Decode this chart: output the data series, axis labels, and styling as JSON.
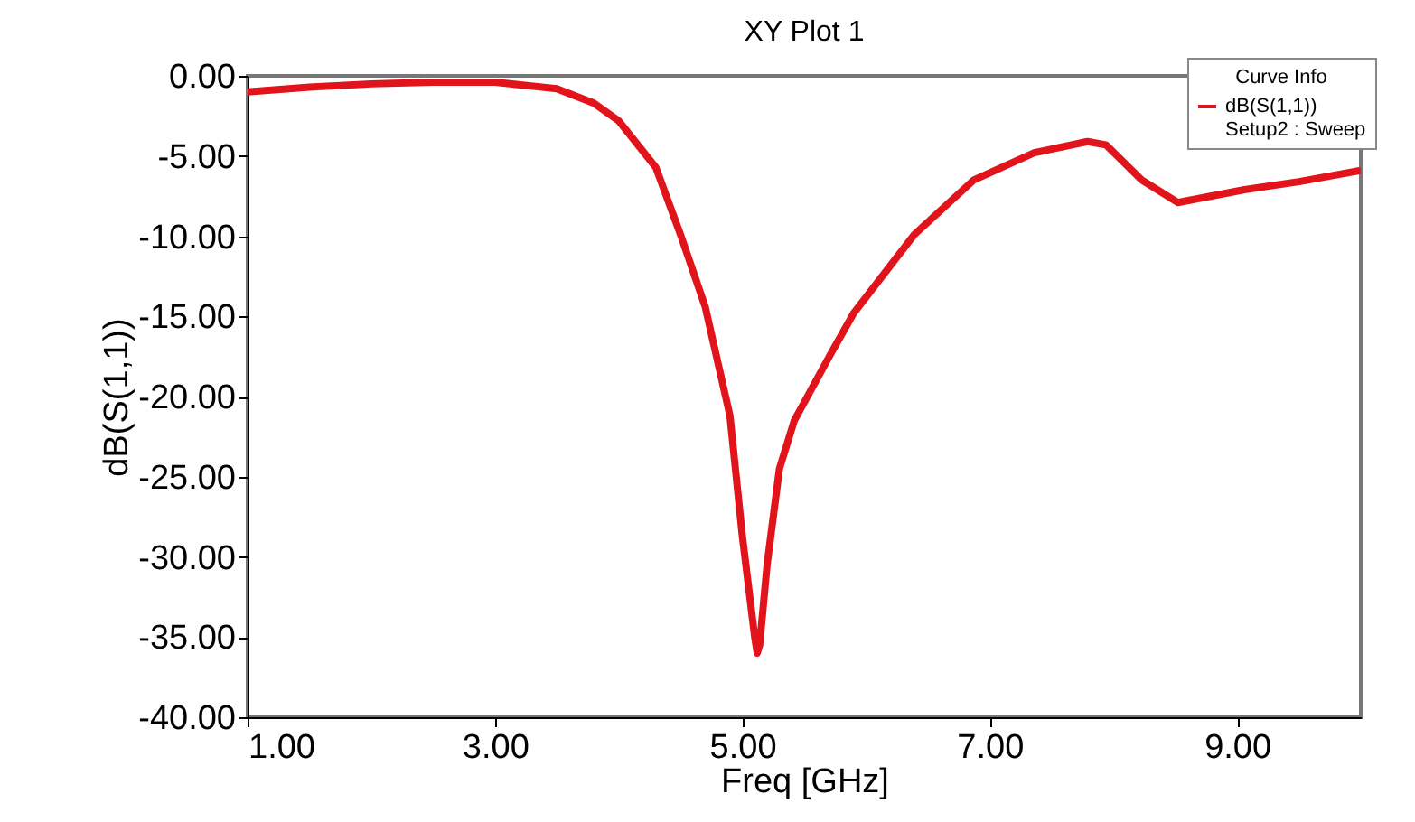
{
  "chart_data": {
    "type": "line",
    "title": "XY Plot 1",
    "xlabel": "Freq [GHz]",
    "ylabel": "dB(S(1,1))",
    "legend_title": "Curve Info",
    "annotations": [
      "Setup2 : Sweep"
    ],
    "legend": "top right",
    "grid": false,
    "marker": "none",
    "line_style": "solid",
    "xlim": [
      1,
      10
    ],
    "xticks": [
      {
        "value": 1,
        "label": "1.00"
      },
      {
        "value": 3,
        "label": "3.00"
      },
      {
        "value": 5,
        "label": "5.00"
      },
      {
        "value": 7,
        "label": "7.00"
      },
      {
        "value": 9,
        "label": "9.00"
      }
    ],
    "ylim": [
      -40,
      0
    ],
    "yticks": [
      {
        "value": 0,
        "label": "0.00"
      },
      {
        "value": -5,
        "label": "-5.00"
      },
      {
        "value": -10,
        "label": "-10.00"
      },
      {
        "value": -15,
        "label": "-15.00"
      },
      {
        "value": -20,
        "label": "-20.00"
      },
      {
        "value": -25,
        "label": "-25.00"
      },
      {
        "value": -30,
        "label": "-30.00"
      },
      {
        "value": -35,
        "label": "-35.00"
      },
      {
        "value": -40,
        "label": "-40.00"
      }
    ],
    "series": [
      {
        "name": "dB(S(1,1))",
        "color": "#e0141a",
        "x": [
          1.0,
          1.5,
          2.0,
          2.5,
          3.0,
          3.5,
          3.8,
          4.0,
          4.3,
          4.5,
          4.7,
          4.9,
          5.0,
          5.1,
          5.12,
          5.14,
          5.2,
          5.3,
          5.42,
          5.71,
          5.9,
          6.39,
          6.87,
          7.36,
          7.79,
          7.94,
          8.23,
          8.52,
          9.06,
          9.5,
          10.0
        ],
        "values": [
          -1.0,
          -0.7,
          -0.5,
          -0.4,
          -0.4,
          -0.8,
          -1.7,
          -2.8,
          -5.7,
          -9.9,
          -14.4,
          -21.2,
          -28.7,
          -35.0,
          -36.0,
          -35.5,
          -30.5,
          -24.5,
          -21.5,
          -17.4,
          -14.8,
          -9.9,
          -6.5,
          -4.8,
          -4.1,
          -4.3,
          -6.5,
          -7.9,
          -7.1,
          -6.6,
          -5.9
        ]
      }
    ]
  }
}
